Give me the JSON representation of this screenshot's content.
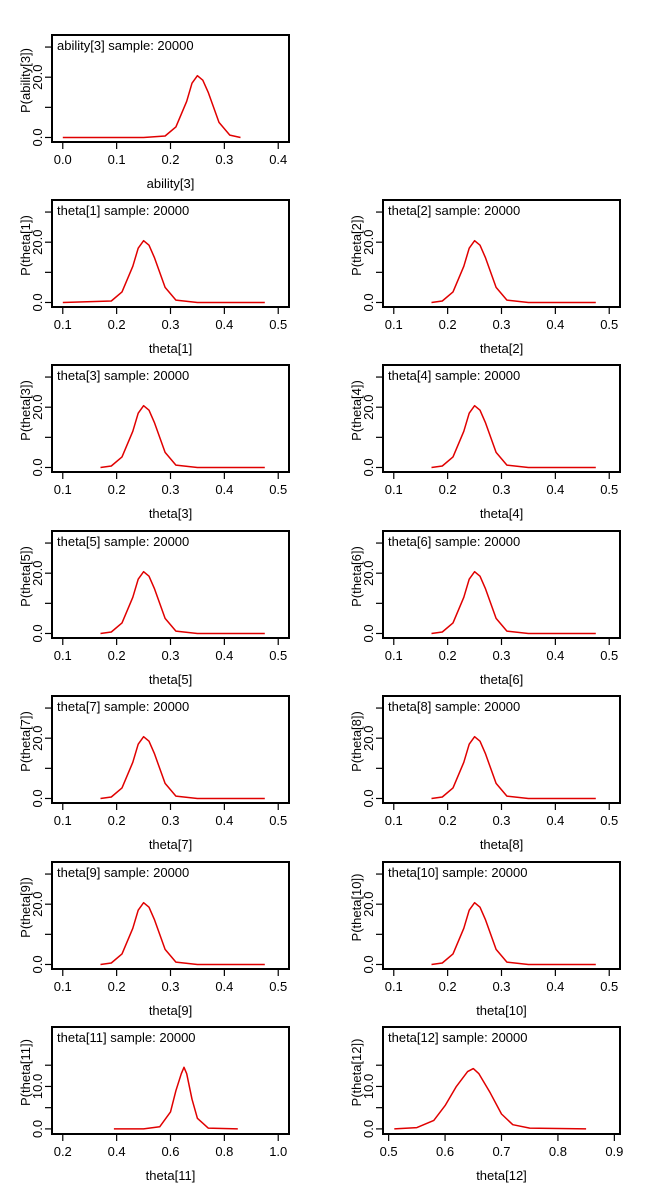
{
  "figure": {
    "line_color": "#e00000"
  },
  "chart_data": [
    {
      "type": "line",
      "title": "ability[3] sample: 20000",
      "xlabel": "ability[3]",
      "ylabel": "P(ability[3])",
      "xlim": [
        -0.02,
        0.42
      ],
      "xticks": [
        0.0,
        0.1,
        0.2,
        0.3,
        0.4
      ],
      "xtick_labels": [
        "0.0",
        "0.1",
        "0.2",
        "0.3",
        "0.4"
      ],
      "ylim": [
        -1.5,
        34
      ],
      "yticks": [
        0,
        20
      ],
      "ytick_labels": [
        "0.0",
        "20.0"
      ],
      "x": [
        0.0,
        0.15,
        0.19,
        0.21,
        0.23,
        0.24,
        0.25,
        0.26,
        0.27,
        0.29,
        0.31,
        0.33
      ],
      "y": [
        0,
        0,
        0.5,
        3.5,
        12,
        18,
        20.5,
        19,
        15,
        5,
        0.8,
        0
      ]
    },
    {
      "type": "line",
      "title": "theta[1] sample: 20000",
      "xlabel": "theta[1]",
      "ylabel": "P(theta[1])",
      "xlim": [
        0.08,
        0.52
      ],
      "xticks": [
        0.1,
        0.2,
        0.3,
        0.4,
        0.5
      ],
      "xtick_labels": [
        "0.1",
        "0.2",
        "0.3",
        "0.4",
        "0.5"
      ],
      "ylim": [
        -1.5,
        34
      ],
      "yticks": [
        0,
        20
      ],
      "ytick_labels": [
        "0.0",
        "20.0"
      ],
      "x": [
        0.1,
        0.19,
        0.21,
        0.23,
        0.24,
        0.25,
        0.26,
        0.27,
        0.29,
        0.31,
        0.35,
        0.475
      ],
      "y": [
        0,
        0.5,
        3.5,
        12,
        18,
        20.5,
        19,
        15,
        5,
        0.8,
        0,
        0
      ]
    },
    {
      "type": "line",
      "title": "theta[2] sample: 20000",
      "xlabel": "theta[2]",
      "ylabel": "P(theta[2])",
      "xlim": [
        0.08,
        0.52
      ],
      "xticks": [
        0.1,
        0.2,
        0.3,
        0.4,
        0.5
      ],
      "xtick_labels": [
        "0.1",
        "0.2",
        "0.3",
        "0.4",
        "0.5"
      ],
      "ylim": [
        -1.5,
        34
      ],
      "yticks": [
        0,
        20
      ],
      "ytick_labels": [
        "0.0",
        "20.0"
      ],
      "x": [
        0.17,
        0.19,
        0.21,
        0.23,
        0.24,
        0.25,
        0.26,
        0.27,
        0.29,
        0.31,
        0.35,
        0.475
      ],
      "y": [
        0,
        0.5,
        3.5,
        12,
        18,
        20.5,
        19,
        15,
        5,
        0.8,
        0,
        0
      ]
    },
    {
      "type": "line",
      "title": "theta[3] sample: 20000",
      "xlabel": "theta[3]",
      "ylabel": "P(theta[3])",
      "xlim": [
        0.08,
        0.52
      ],
      "xticks": [
        0.1,
        0.2,
        0.3,
        0.4,
        0.5
      ],
      "xtick_labels": [
        "0.1",
        "0.2",
        "0.3",
        "0.4",
        "0.5"
      ],
      "ylim": [
        -1.5,
        34
      ],
      "yticks": [
        0,
        20
      ],
      "ytick_labels": [
        "0.0",
        "20.0"
      ],
      "x": [
        0.17,
        0.19,
        0.21,
        0.23,
        0.24,
        0.25,
        0.26,
        0.27,
        0.29,
        0.31,
        0.35,
        0.475
      ],
      "y": [
        0,
        0.5,
        3.5,
        12,
        18,
        20.5,
        19,
        15,
        5,
        0.8,
        0,
        0
      ]
    },
    {
      "type": "line",
      "title": "theta[4] sample: 20000",
      "xlabel": "theta[4]",
      "ylabel": "P(theta[4])",
      "xlim": [
        0.08,
        0.52
      ],
      "xticks": [
        0.1,
        0.2,
        0.3,
        0.4,
        0.5
      ],
      "xtick_labels": [
        "0.1",
        "0.2",
        "0.3",
        "0.4",
        "0.5"
      ],
      "ylim": [
        -1.5,
        34
      ],
      "yticks": [
        0,
        20
      ],
      "ytick_labels": [
        "0.0",
        "20.0"
      ],
      "x": [
        0.17,
        0.19,
        0.21,
        0.23,
        0.24,
        0.25,
        0.26,
        0.27,
        0.29,
        0.31,
        0.35,
        0.475
      ],
      "y": [
        0,
        0.5,
        3.5,
        12,
        18,
        20.5,
        19,
        15,
        5,
        0.8,
        0,
        0
      ]
    },
    {
      "type": "line",
      "title": "theta[5] sample: 20000",
      "xlabel": "theta[5]",
      "ylabel": "P(theta[5])",
      "xlim": [
        0.08,
        0.52
      ],
      "xticks": [
        0.1,
        0.2,
        0.3,
        0.4,
        0.5
      ],
      "xtick_labels": [
        "0.1",
        "0.2",
        "0.3",
        "0.4",
        "0.5"
      ],
      "ylim": [
        -1.5,
        34
      ],
      "yticks": [
        0,
        20
      ],
      "ytick_labels": [
        "0.0",
        "20.0"
      ],
      "x": [
        0.17,
        0.19,
        0.21,
        0.23,
        0.24,
        0.25,
        0.26,
        0.27,
        0.29,
        0.31,
        0.35,
        0.475
      ],
      "y": [
        0,
        0.5,
        3.5,
        12,
        18,
        20.5,
        19,
        15,
        5,
        0.8,
        0,
        0
      ]
    },
    {
      "type": "line",
      "title": "theta[6] sample: 20000",
      "xlabel": "theta[6]",
      "ylabel": "P(theta[6])",
      "xlim": [
        0.08,
        0.52
      ],
      "xticks": [
        0.1,
        0.2,
        0.3,
        0.4,
        0.5
      ],
      "xtick_labels": [
        "0.1",
        "0.2",
        "0.3",
        "0.4",
        "0.5"
      ],
      "ylim": [
        -1.5,
        34
      ],
      "yticks": [
        0,
        20
      ],
      "ytick_labels": [
        "0.0",
        "20.0"
      ],
      "x": [
        0.17,
        0.19,
        0.21,
        0.23,
        0.24,
        0.25,
        0.26,
        0.27,
        0.29,
        0.31,
        0.35,
        0.475
      ],
      "y": [
        0,
        0.5,
        3.5,
        12,
        18,
        20.5,
        19,
        15,
        5,
        0.8,
        0,
        0
      ]
    },
    {
      "type": "line",
      "title": "theta[7] sample: 20000",
      "xlabel": "theta[7]",
      "ylabel": "P(theta[7])",
      "xlim": [
        0.08,
        0.52
      ],
      "xticks": [
        0.1,
        0.2,
        0.3,
        0.4,
        0.5
      ],
      "xtick_labels": [
        "0.1",
        "0.2",
        "0.3",
        "0.4",
        "0.5"
      ],
      "ylim": [
        -1.5,
        34
      ],
      "yticks": [
        0,
        20
      ],
      "ytick_labels": [
        "0.0",
        "20.0"
      ],
      "x": [
        0.17,
        0.19,
        0.21,
        0.23,
        0.24,
        0.25,
        0.26,
        0.27,
        0.29,
        0.31,
        0.35,
        0.475
      ],
      "y": [
        0,
        0.5,
        3.5,
        12,
        18,
        20.5,
        19,
        15,
        5,
        0.8,
        0,
        0
      ]
    },
    {
      "type": "line",
      "title": "theta[8] sample: 20000",
      "xlabel": "theta[8]",
      "ylabel": "P(theta[8])",
      "xlim": [
        0.08,
        0.52
      ],
      "xticks": [
        0.1,
        0.2,
        0.3,
        0.4,
        0.5
      ],
      "xtick_labels": [
        "0.1",
        "0.2",
        "0.3",
        "0.4",
        "0.5"
      ],
      "ylim": [
        -1.5,
        34
      ],
      "yticks": [
        0,
        20
      ],
      "ytick_labels": [
        "0.0",
        "20.0"
      ],
      "x": [
        0.17,
        0.19,
        0.21,
        0.23,
        0.24,
        0.25,
        0.26,
        0.27,
        0.29,
        0.31,
        0.35,
        0.475
      ],
      "y": [
        0,
        0.5,
        3.5,
        12,
        18,
        20.5,
        19,
        15,
        5,
        0.8,
        0,
        0
      ]
    },
    {
      "type": "line",
      "title": "theta[9] sample: 20000",
      "xlabel": "theta[9]",
      "ylabel": "P(theta[9])",
      "xlim": [
        0.08,
        0.52
      ],
      "xticks": [
        0.1,
        0.2,
        0.3,
        0.4,
        0.5
      ],
      "xtick_labels": [
        "0.1",
        "0.2",
        "0.3",
        "0.4",
        "0.5"
      ],
      "ylim": [
        -1.5,
        34
      ],
      "yticks": [
        0,
        20
      ],
      "ytick_labels": [
        "0.0",
        "20.0"
      ],
      "x": [
        0.17,
        0.19,
        0.21,
        0.23,
        0.24,
        0.25,
        0.26,
        0.27,
        0.29,
        0.31,
        0.35,
        0.475
      ],
      "y": [
        0,
        0.5,
        3.5,
        12,
        18,
        20.5,
        19,
        15,
        5,
        0.8,
        0,
        0
      ]
    },
    {
      "type": "line",
      "title": "theta[10] sample: 20000",
      "xlabel": "theta[10]",
      "ylabel": "P(theta[10])",
      "xlim": [
        0.08,
        0.52
      ],
      "xticks": [
        0.1,
        0.2,
        0.3,
        0.4,
        0.5
      ],
      "xtick_labels": [
        "0.1",
        "0.2",
        "0.3",
        "0.4",
        "0.5"
      ],
      "ylim": [
        -1.5,
        34
      ],
      "yticks": [
        0,
        20
      ],
      "ytick_labels": [
        "0.0",
        "20.0"
      ],
      "x": [
        0.17,
        0.19,
        0.21,
        0.23,
        0.24,
        0.25,
        0.26,
        0.27,
        0.29,
        0.31,
        0.35,
        0.475
      ],
      "y": [
        0,
        0.5,
        3.5,
        12,
        18,
        20.5,
        19,
        15,
        5,
        0.8,
        0,
        0
      ]
    },
    {
      "type": "line",
      "title": "theta[11] sample: 20000",
      "xlabel": "theta[11]",
      "ylabel": "P(theta[11])",
      "xlim": [
        0.16,
        1.04
      ],
      "xticks": [
        0.2,
        0.4,
        0.6,
        0.8,
        1.0
      ],
      "xtick_labels": [
        "0.2",
        "0.4",
        "0.6",
        "0.8",
        "1.0"
      ],
      "ylim": [
        -1.2,
        24
      ],
      "yticks": [
        0,
        10
      ],
      "ytick_labels": [
        "0.0",
        "10.0"
      ],
      "x": [
        0.39,
        0.5,
        0.56,
        0.6,
        0.62,
        0.64,
        0.65,
        0.66,
        0.68,
        0.7,
        0.74,
        0.85
      ],
      "y": [
        0,
        0,
        0.5,
        4,
        9,
        13,
        14.5,
        13,
        7,
        2.5,
        0.2,
        0
      ]
    },
    {
      "type": "line",
      "title": "theta[12] sample: 20000",
      "xlabel": "theta[12]",
      "ylabel": "P(theta[12])",
      "xlim": [
        0.49,
        0.91
      ],
      "xticks": [
        0.5,
        0.6,
        0.7,
        0.8,
        0.9
      ],
      "xtick_labels": [
        "0.5",
        "0.6",
        "0.7",
        "0.8",
        "0.9"
      ],
      "ylim": [
        -1.2,
        24
      ],
      "yticks": [
        0,
        10
      ],
      "ytick_labels": [
        "0.0",
        "10.0"
      ],
      "x": [
        0.51,
        0.55,
        0.58,
        0.6,
        0.62,
        0.64,
        0.65,
        0.66,
        0.68,
        0.7,
        0.72,
        0.75,
        0.85
      ],
      "y": [
        0,
        0.3,
        2,
        5.5,
        10,
        13.5,
        14.2,
        13,
        8.5,
        3.5,
        1,
        0.2,
        0
      ]
    }
  ]
}
